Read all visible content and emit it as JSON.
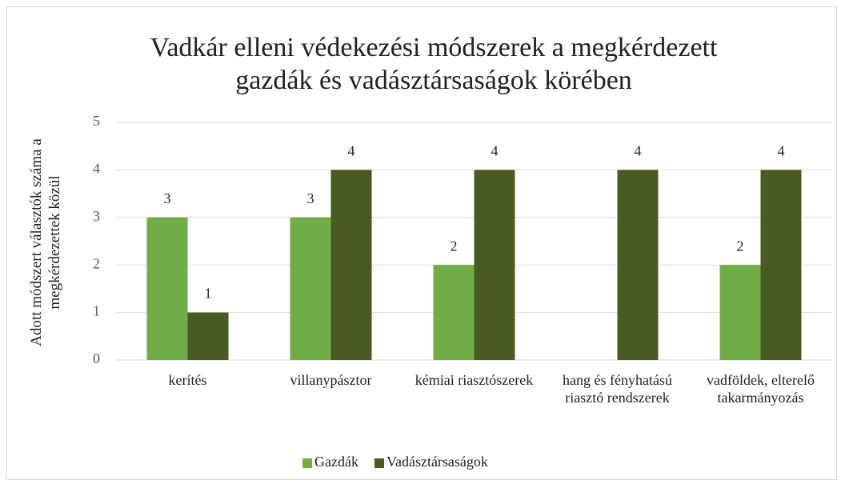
{
  "chart_data": {
    "type": "bar",
    "title": "Vadkár elleni védekezési módszerek a megkérdezett gazdák és vadásztársaságok körében",
    "y_label": "Adott módszert választók száma a megkérdezettek közül",
    "categories": [
      "kerítés",
      "villanypásztor",
      "kémiai riasztószerek",
      "hang és fényhatású riasztó rendszerek",
      "vadföldek, elterelő takarmányozás"
    ],
    "series": [
      {
        "name": "Gazdák",
        "color": "#70ad47",
        "values": [
          3,
          3,
          2,
          null,
          2
        ]
      },
      {
        "name": "Vadásztársaságok",
        "color": "#4a5a23",
        "values": [
          1,
          4,
          4,
          4,
          4
        ]
      }
    ],
    "ylim": [
      0,
      5
    ],
    "yticks": [
      0,
      1,
      2,
      3,
      4,
      5
    ],
    "grid": true,
    "legend": "bottom"
  }
}
